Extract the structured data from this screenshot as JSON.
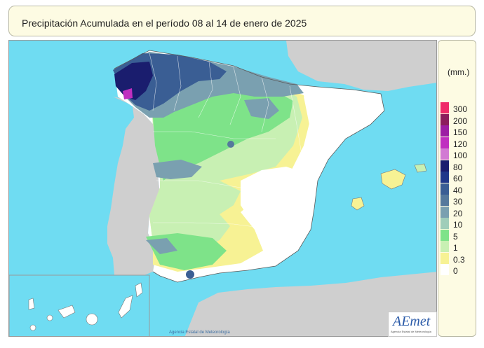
{
  "title": "Precipitación Acumulada en el período 08 al 14 de enero de 2025",
  "legend": {
    "unit": "(mm.)",
    "classes": [
      {
        "label": "300",
        "color": "#ef2a68"
      },
      {
        "label": "200",
        "color": "#8c1d5c"
      },
      {
        "label": "150",
        "color": "#9c1ea3"
      },
      {
        "label": "120",
        "color": "#c02fc0"
      },
      {
        "label": "100",
        "color": "#d27ad3"
      },
      {
        "label": "80",
        "color": "#1a1d6e"
      },
      {
        "label": "60",
        "color": "#20388a"
      },
      {
        "label": "40",
        "color": "#3a5e94"
      },
      {
        "label": "30",
        "color": "#55799c"
      },
      {
        "label": "20",
        "color": "#7aa0b0"
      },
      {
        "label": "10",
        "color": "#9fcdb9"
      },
      {
        "label": "5",
        "color": "#7ee389"
      },
      {
        "label": "1",
        "color": "#c8f0b3"
      },
      {
        "label": "0.3",
        "color": "#f7f294"
      },
      {
        "label": "0",
        "color": "#ffffff"
      }
    ]
  },
  "logo": {
    "text": "AEmet",
    "subtitle": "Agencia Estatal de Meteorología"
  },
  "credit": "Agencia Estatal de Meteorología"
}
